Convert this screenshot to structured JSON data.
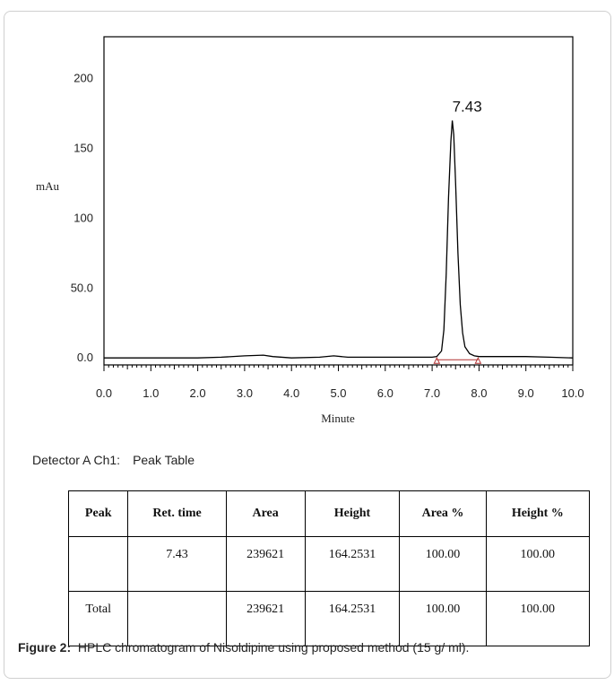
{
  "chart_data": {
    "type": "line",
    "xlabel": "Minute",
    "ylabel": "mAu",
    "xlim": [
      0,
      10
    ],
    "ylim": [
      -5,
      230
    ],
    "x_ticks": [
      "0.0",
      "1.0",
      "2.0",
      "3.0",
      "4.0",
      "5.0",
      "6.0",
      "7.0",
      "8.0",
      "9.0",
      "10.0"
    ],
    "y_ticks": [
      {
        "value": 0,
        "label": "0.0"
      },
      {
        "value": 50,
        "label": "50.0"
      },
      {
        "value": 100,
        "label": "100"
      },
      {
        "value": 150,
        "label": "150"
      },
      {
        "value": 200,
        "label": "200"
      }
    ],
    "peak_annotation": {
      "x": 7.43,
      "y": 170,
      "label": "7.43"
    },
    "baseline_markers": [
      7.1,
      7.98
    ],
    "series": [
      {
        "x": [
          0,
          1,
          2,
          2.5,
          3,
          3.4,
          3.6,
          4,
          4.6,
          4.9,
          5.2,
          6,
          6.5,
          7,
          7.1,
          7.2,
          7.25,
          7.3,
          7.35,
          7.4,
          7.43,
          7.46,
          7.5,
          7.55,
          7.6,
          7.65,
          7.7,
          7.8,
          7.9,
          8,
          8.5,
          9,
          9.5,
          10
        ],
        "y": [
          0,
          0,
          0,
          0.5,
          1.5,
          2,
          1,
          0,
          0.5,
          1.5,
          0.5,
          0.5,
          0.5,
          0.5,
          1,
          5,
          20,
          60,
          115,
          155,
          170,
          160,
          125,
          75,
          38,
          18,
          8,
          3,
          1.5,
          1,
          1,
          1,
          0.5,
          0
        ]
      }
    ]
  },
  "detector": {
    "label": "Detector A Ch1:",
    "title": "Peak Table"
  },
  "table": {
    "headers": [
      "Peak",
      "Ret. time",
      "Area",
      "Height",
      "Area %",
      "Height %"
    ],
    "rows": [
      [
        "",
        "7.43",
        "239621",
        "164.2531",
        "100.00",
        "100.00"
      ],
      [
        "Total",
        "",
        "239621",
        "164.2531",
        "100.00",
        "100.00"
      ]
    ]
  },
  "caption": {
    "label": "Figure 2:",
    "text": "HPLC chromatogram of Nisoldipine using proposed method (15 g/ ml)."
  }
}
